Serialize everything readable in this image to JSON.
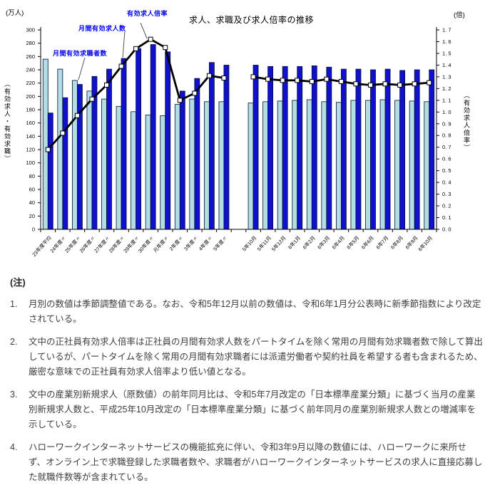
{
  "chart": {
    "title": "求人、求職及び求人倍率の推移",
    "left_unit": "(万人)",
    "right_unit": "(倍)",
    "left_axis_name": "（有効求人・有効求職）",
    "right_axis_name": "（有効求人倍率）",
    "annotations": {
      "ratio": "有効求人倍率",
      "openings": "月間有効求人数",
      "seekers": "月間有効求職者数"
    },
    "colors": {
      "seekers_bar": "#b2dde2",
      "openings_bar": "#1111cd",
      "ratio_line": "#000000",
      "annotation_text": "#0000ee"
    }
  },
  "chart_data": {
    "type": "bar",
    "title": "求人、求職及び求人倍率の推移",
    "categories": [
      "23年度平均",
      "24年度〃",
      "25年度〃",
      "26年度〃",
      "27年度〃",
      "28年度〃",
      "29年度〃",
      "30年度〃",
      "元年度〃",
      "2年度〃",
      "3年度〃",
      "4年度〃",
      "5年度〃",
      "5年10月",
      "5年11月",
      "5年12月",
      "6年1月",
      "6年2月",
      "6年3月",
      "6年4月",
      "6年5月",
      "6年6月",
      "6年7月",
      "6年8月",
      "6年9月",
      "6年10月"
    ],
    "series": [
      {
        "name": "月間有効求職者数",
        "type": "bar",
        "axis": "left",
        "color": "#b2dde2",
        "values": [
          256,
          241,
          224,
          208,
          196,
          185,
          177,
          172,
          171,
          188,
          196,
          192,
          192,
          190,
          192,
          193,
          194,
          195,
          192,
          191,
          194,
          194,
          195,
          194,
          193,
          192
        ]
      },
      {
        "name": "月間有効求人数",
        "type": "bar",
        "axis": "left",
        "color": "#1111cd",
        "values": [
          175,
          198,
          218,
          230,
          241,
          257,
          272,
          278,
          267,
          208,
          227,
          251,
          247,
          247,
          245,
          245,
          245,
          246,
          244,
          241,
          241,
          240,
          241,
          239,
          240,
          240
        ]
      },
      {
        "name": "有効求人倍率",
        "type": "line",
        "axis": "right",
        "color": "#000000",
        "marker": "white-square",
        "values": [
          0.68,
          0.82,
          0.97,
          1.11,
          1.23,
          1.39,
          1.54,
          1.62,
          1.55,
          1.1,
          1.16,
          1.31,
          1.29,
          1.3,
          1.28,
          1.27,
          1.27,
          1.26,
          1.28,
          1.26,
          1.24,
          1.23,
          1.24,
          1.23,
          1.24,
          1.25
        ]
      }
    ],
    "left_axis": {
      "unit": "(万人)",
      "label": "（有効求人・有効求職）",
      "min": 0,
      "max": 300,
      "tick_step": 20
    },
    "right_axis": {
      "unit": "(倍)",
      "label": "（有効求人倍率）",
      "min": 0.0,
      "max": 1.7,
      "tick_step": 0.1
    },
    "gap_after_index": 12,
    "grid": false,
    "legend_position": "none"
  },
  "notes": {
    "heading": "(注)",
    "items": [
      {
        "num": "1.",
        "text": "月別の数値は季節調整値である。なお、令和5年12月以前の数値は、令和6年1月分公表時に新季節指数により改定されている。"
      },
      {
        "num": "2.",
        "text": "文中の正社員有効求人倍率は正社員の月間有効求人数をパートタイムを除く常用の月間有効求職者数で除して算出しているが、パートタイムを除く常用の月間有効求職者には派遣労働者や契約社員を希望する者も含まれるため、厳密な意味での正社員有効求人倍率より低い値となる。"
      },
      {
        "num": "3.",
        "text": "文中の産業別新規求人（原数値）の前年同月比は、令和5年7月改定の「日本標準産業分類」に基づく当月の産業別新規求人数と、平成25年10月改定の「日本標準産業分類」に基づく前年同月の産業別新規求人数との増減率を示している。"
      },
      {
        "num": "4.",
        "text": "ハローワークインターネットサービスの機能拡充に伴い、令和3年9月以降の数値には、ハローワークに来所せず、オンライン上で求職登録した求職者数や、求職者がハローワークインターネットサービスの求人に直接応募した就職件数等が含まれている。"
      }
    ]
  }
}
